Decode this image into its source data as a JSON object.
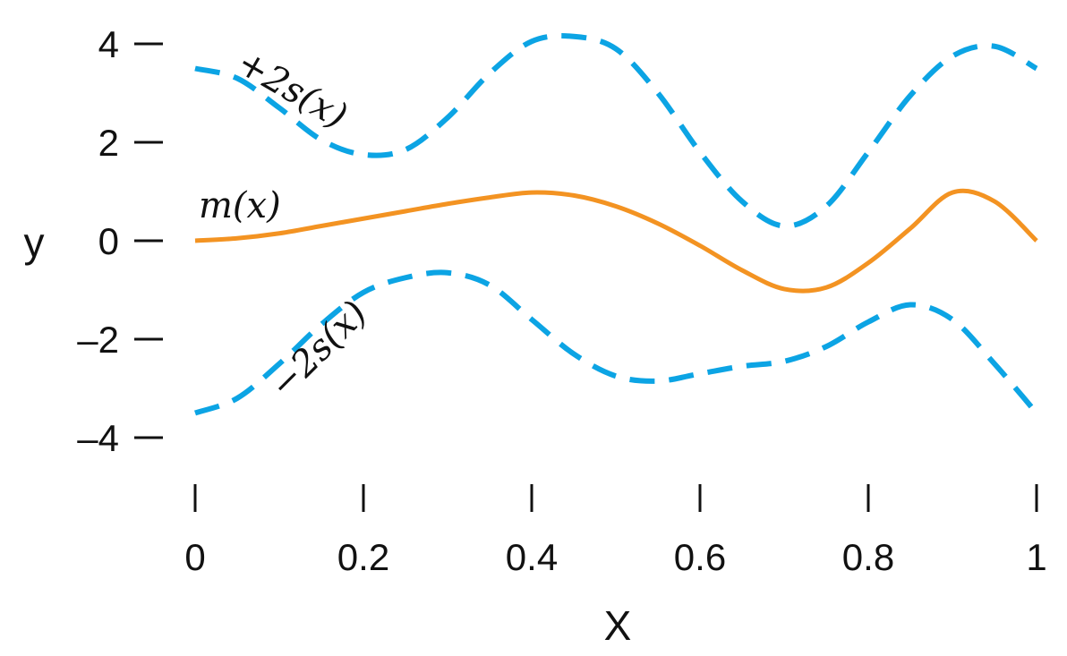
{
  "chart_data": {
    "type": "line",
    "title": "",
    "xlabel": "X",
    "ylabel": "y",
    "xlim": [
      0,
      1
    ],
    "ylim": [
      -4.5,
      4.2
    ],
    "grid": false,
    "x_ticks": [
      "0",
      "0.2",
      "0.4",
      "0.6",
      "0.8",
      "1"
    ],
    "y_ticks": [
      "4",
      "2",
      "0",
      "–2",
      "–4"
    ],
    "colors": {
      "mean": "#f39322",
      "bound": "#0ca4e4"
    },
    "x": [
      0,
      0.05,
      0.1,
      0.15,
      0.2,
      0.25,
      0.3,
      0.35,
      0.4,
      0.45,
      0.5,
      0.55,
      0.6,
      0.65,
      0.7,
      0.75,
      0.8,
      0.85,
      0.9,
      0.95,
      1
    ],
    "series": [
      {
        "style": "solid",
        "annotation": "m(x)",
        "values": [
          0,
          0.05,
          0.15,
          0.3,
          0.45,
          0.6,
          0.75,
          0.88,
          0.98,
          0.92,
          0.7,
          0.35,
          -0.1,
          -0.6,
          -0.98,
          -0.95,
          -0.45,
          0.25,
          0.98,
          0.8,
          0
        ]
      },
      {
        "style": "dashed",
        "annotation": "+2s(x)",
        "values": [
          3.5,
          3.3,
          2.7,
          2.05,
          1.75,
          1.85,
          2.5,
          3.4,
          4.05,
          4.15,
          3.9,
          3.0,
          1.8,
          0.8,
          0.3,
          0.7,
          1.8,
          2.95,
          3.75,
          3.95,
          3.5
        ]
      },
      {
        "style": "dashed",
        "annotation": "−2s(x)",
        "values": [
          -3.5,
          -3.2,
          -2.5,
          -1.7,
          -1.05,
          -0.75,
          -0.65,
          -0.9,
          -1.6,
          -2.3,
          -2.75,
          -2.85,
          -2.7,
          -2.55,
          -2.45,
          -2.15,
          -1.65,
          -1.3,
          -1.6,
          -2.5,
          -3.5
        ]
      }
    ]
  }
}
